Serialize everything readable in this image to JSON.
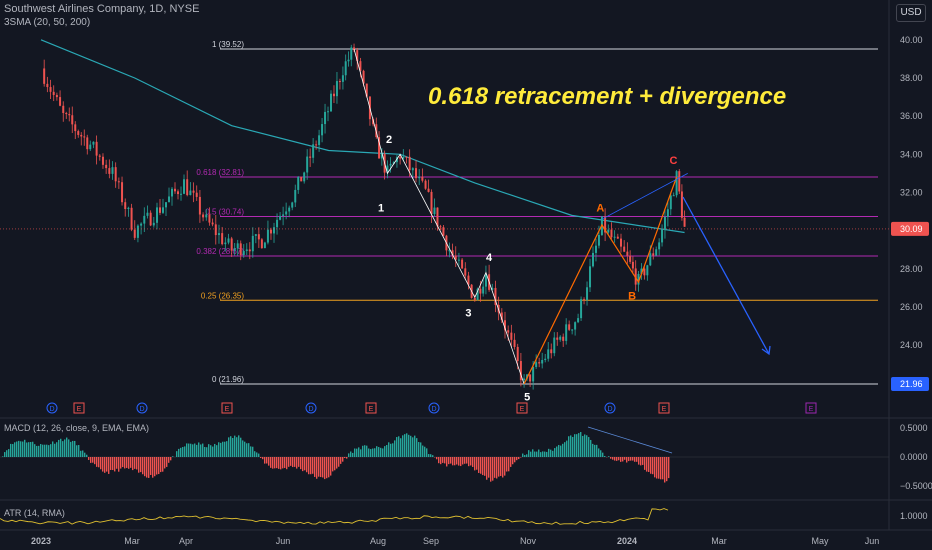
{
  "header": {
    "title": "Southwest Airlines Company, 1D, NYSE",
    "indicator": "3SMA (20, 50, 200)",
    "currency": "USD"
  },
  "annotation": {
    "headline": "0.618 retracement + divergence"
  },
  "colors": {
    "bg": "#131722",
    "up": "#26a69a",
    "down": "#ef5350",
    "sma": "#2aa8b5",
    "fib_white": "#d1d4dc",
    "fib_purple": "#b22ab2",
    "fib_orange": "#f0a020",
    "headline": "#ffeb3b",
    "wave": "#ff6a00",
    "arrow": "#2962ff",
    "macd_up": "#26a69a",
    "macd_down": "#ef5350",
    "atr": "#e0c030"
  },
  "price_axis": {
    "ticks": [
      "40.00",
      "38.00",
      "36.00",
      "34.00",
      "32.00",
      "30.00",
      "28.00",
      "26.00",
      "24.00",
      "22.00"
    ],
    "last_price": "30.09",
    "low_price": "21.96"
  },
  "time_axis": [
    "2023",
    "Mar",
    "Apr",
    "Jun",
    "Aug",
    "Sep",
    "Nov",
    "2024",
    "Mar",
    "May",
    "Jun"
  ],
  "fib_levels": [
    {
      "label": "1 (39.52)",
      "value": 39.52,
      "color": "#d1d4dc"
    },
    {
      "label": "0.618 (32.81)",
      "value": 32.81,
      "color": "#b22ab2"
    },
    {
      "label": "0.5 (30.74)",
      "value": 30.74,
      "color": "#b22ab2"
    },
    {
      "label": "0.382 (28.67)",
      "value": 28.67,
      "color": "#b22ab2"
    },
    {
      "label": "0.25 (26.35)",
      "value": 26.35,
      "color": "#f0a020"
    },
    {
      "label": "0 (21.96)",
      "value": 21.96,
      "color": "#d1d4dc"
    }
  ],
  "wave_labels": [
    {
      "text": "1",
      "color": "#ffffff"
    },
    {
      "text": "2",
      "color": "#ffffff"
    },
    {
      "text": "3",
      "color": "#ffffff"
    },
    {
      "text": "4",
      "color": "#ffffff"
    },
    {
      "text": "5",
      "color": "#ffffff"
    },
    {
      "text": "A",
      "color": "#ff6a00"
    },
    {
      "text": "B",
      "color": "#ff6a00"
    },
    {
      "text": "C",
      "color": "#ff4040"
    }
  ],
  "event_markers": [
    "D",
    "E",
    "D",
    "E",
    "D",
    "E",
    "D",
    "E",
    "D",
    "E",
    "E"
  ],
  "macd": {
    "label": "MACD (12, 26, close, 9, EMA, EMA)",
    "ticks": [
      "0.5000",
      "0.0000",
      "−0.5000"
    ]
  },
  "atr": {
    "label": "ATR (14, RMA)",
    "tick": "1.0000"
  },
  "chart_data": {
    "type": "candlestick",
    "title": "Southwest Airlines Company, 1D, NYSE",
    "ylim": [
      21.0,
      40.5
    ],
    "close_path": [
      [
        "2023-01-01",
        38.5
      ],
      [
        "2023-01-15",
        36.0
      ],
      [
        "2023-02-01",
        34.5
      ],
      [
        "2023-02-15",
        33.0
      ],
      [
        "2023-03-01",
        30.0
      ],
      [
        "2023-03-15",
        31.0
      ],
      [
        "2023-04-01",
        32.5
      ],
      [
        "2023-04-15",
        30.5
      ],
      [
        "2023-05-01",
        29.0
      ],
      [
        "2023-05-20",
        29.5
      ],
      [
        "2023-06-10",
        32.0
      ],
      [
        "2023-06-25",
        35.0
      ],
      [
        "2023-07-10",
        38.5
      ],
      [
        "2023-07-17",
        39.52
      ],
      [
        "2023-07-31",
        34.5
      ],
      [
        "2023-08-07",
        33.0
      ],
      [
        "2023-08-15",
        34.0
      ],
      [
        "2023-08-31",
        32.0
      ],
      [
        "2023-09-15",
        29.0
      ],
      [
        "2023-10-01",
        26.5
      ],
      [
        "2023-10-08",
        27.8
      ],
      [
        "2023-10-20",
        25.0
      ],
      [
        "2023-11-01",
        21.96
      ],
      [
        "2023-11-20",
        24.0
      ],
      [
        "2023-12-05",
        25.5
      ],
      [
        "2023-12-20",
        30.3
      ],
      [
        "2024-01-05",
        28.5
      ],
      [
        "2024-01-12",
        27.3
      ],
      [
        "2024-01-25",
        29.5
      ],
      [
        "2024-02-05",
        32.81
      ],
      [
        "2024-02-10",
        30.09
      ]
    ],
    "sma200": [
      [
        "2023-01-01",
        40.0
      ],
      [
        "2023-03-01",
        38.0
      ],
      [
        "2023-05-01",
        35.5
      ],
      [
        "2023-07-01",
        34.2
      ],
      [
        "2023-08-15",
        34.0
      ],
      [
        "2023-10-01",
        32.5
      ],
      [
        "2023-12-01",
        30.8
      ],
      [
        "2024-02-10",
        29.9
      ]
    ],
    "macd_divergence": "lower highs on MACD while price makes higher high at C",
    "price_projection": "down from C toward ~23.5"
  }
}
